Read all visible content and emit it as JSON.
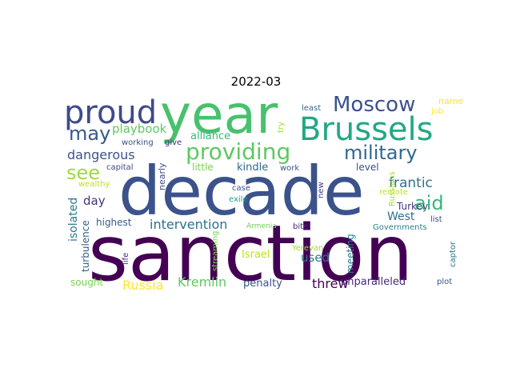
{
  "title": "2022-03",
  "words": [
    {
      "text": "sanction",
      "color": "#440154"
    },
    {
      "text": "decade",
      "color": "#3b528b"
    },
    {
      "text": "year",
      "color": "#48c16e"
    },
    {
      "text": "proud",
      "color": "#3e4a89"
    },
    {
      "text": "Brussels",
      "color": "#22a884"
    },
    {
      "text": "Moscow",
      "color": "#3b528b"
    },
    {
      "text": "providing",
      "color": "#5ec962"
    },
    {
      "text": "military",
      "color": "#31688e"
    },
    {
      "text": "may",
      "color": "#38588c"
    },
    {
      "text": "see",
      "color": "#a0da39"
    },
    {
      "text": "aid",
      "color": "#35b779"
    },
    {
      "text": "playbook",
      "color": "#5ec962"
    },
    {
      "text": "dangerous",
      "color": "#3b528b"
    },
    {
      "text": "frantic",
      "color": "#2c728e"
    },
    {
      "text": "intervention",
      "color": "#2c728e"
    },
    {
      "text": "isolated",
      "color": "#2a788e"
    },
    {
      "text": "day",
      "color": "#46327e"
    },
    {
      "text": "West",
      "color": "#2c728e"
    },
    {
      "text": "Turkey",
      "color": "#443983"
    },
    {
      "text": "Kremlin",
      "color": "#5ec962"
    },
    {
      "text": "Russia",
      "color": "#fde725"
    },
    {
      "text": "threw",
      "color": "#440154"
    },
    {
      "text": "used",
      "color": "#2a788e"
    },
    {
      "text": "unparalleled",
      "color": "#482878"
    },
    {
      "text": "highest",
      "color": "#365c8d"
    },
    {
      "text": "alliance",
      "color": "#35b779"
    },
    {
      "text": "kindle",
      "color": "#31688e"
    },
    {
      "text": "level",
      "color": "#3e4a89"
    },
    {
      "text": "little",
      "color": "#7ad151"
    },
    {
      "text": "Israel",
      "color": "#bddf26"
    },
    {
      "text": "penalty",
      "color": "#3b528b"
    },
    {
      "text": "turbulence",
      "color": "#365c8d"
    },
    {
      "text": "meeting",
      "color": "#26828e"
    },
    {
      "text": "sought",
      "color": "#7ad151"
    },
    {
      "text": "name",
      "color": "#fde725"
    },
    {
      "text": "job",
      "color": "#fde725"
    },
    {
      "text": "least",
      "color": "#31688e"
    },
    {
      "text": "list",
      "color": "#3e4a89"
    },
    {
      "text": "Governments",
      "color": "#26828e"
    },
    {
      "text": "Russians",
      "color": "#a0da39"
    },
    {
      "text": "remote",
      "color": "#bddf26"
    },
    {
      "text": "captor",
      "color": "#2a788e"
    },
    {
      "text": "plot",
      "color": "#38588c"
    },
    {
      "text": "new",
      "color": "#443983"
    },
    {
      "text": "bite",
      "color": "#482878"
    },
    {
      "text": "Armenia",
      "color": "#6ece58"
    },
    {
      "text": "Yerevan",
      "color": "#a0da39"
    },
    {
      "text": "exile",
      "color": "#1f9e89"
    },
    {
      "text": "case",
      "color": "#3b528b"
    },
    {
      "text": "streaming",
      "color": "#7ad151"
    },
    {
      "text": "life",
      "color": "#482878"
    },
    {
      "text": "nearly",
      "color": "#3e4a89"
    },
    {
      "text": "give",
      "color": "#482878"
    },
    {
      "text": "working",
      "color": "#3b528b"
    },
    {
      "text": "capital",
      "color": "#3e4a89"
    },
    {
      "text": "wealthy",
      "color": "#bddf26"
    },
    {
      "text": "try",
      "color": "#a0da39"
    },
    {
      "text": "work",
      "color": "#3b528b"
    }
  ]
}
